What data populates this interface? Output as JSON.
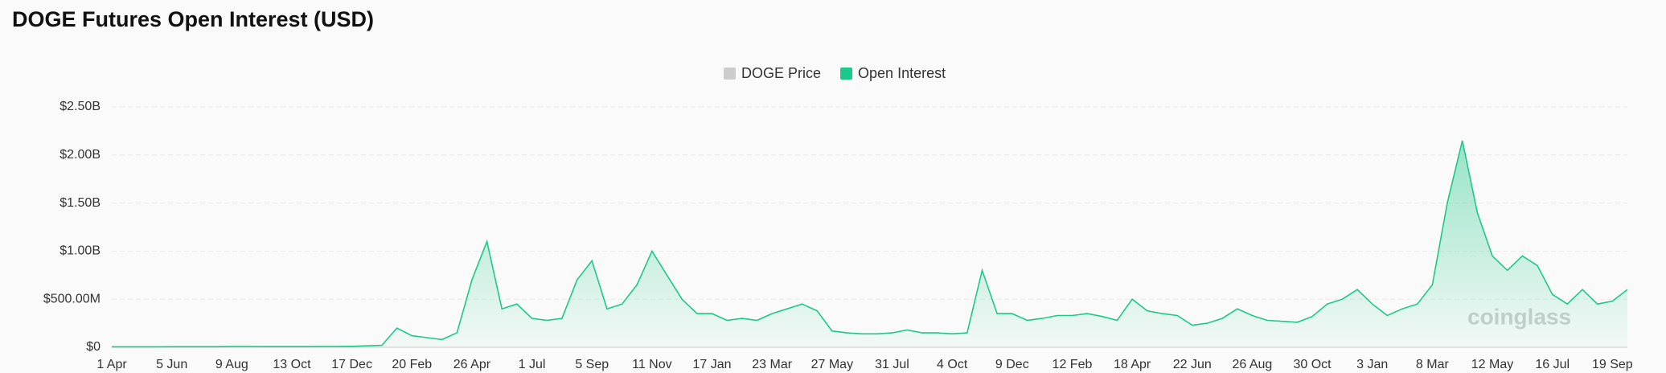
{
  "chart_data": {
    "type": "area",
    "title": "DOGE Futures Open Interest (USD)",
    "categories": [
      "1 Apr",
      null,
      null,
      null,
      "5 Jun",
      null,
      null,
      null,
      "9 Aug",
      null,
      null,
      null,
      "13 Oct",
      null,
      null,
      null,
      "17 Dec",
      null,
      null,
      null,
      "20 Feb",
      null,
      null,
      null,
      "26 Apr",
      null,
      null,
      null,
      "1 Jul",
      null,
      null,
      null,
      "5 Sep",
      null,
      null,
      null,
      "11 Nov",
      null,
      null,
      null,
      "17 Jan",
      null,
      null,
      null,
      "23 Mar",
      null,
      null,
      null,
      "27 May",
      null,
      null,
      null,
      "31 Jul",
      null,
      null,
      null,
      "4 Oct",
      null,
      null,
      null,
      "9 Dec",
      null,
      null,
      null,
      "12 Feb",
      null,
      null,
      null,
      "18 Apr",
      null,
      null,
      null,
      "22 Jun",
      null,
      null,
      null,
      "26 Aug",
      null,
      null,
      null,
      "30 Oct",
      null,
      null,
      null,
      "3 Jan",
      null,
      null,
      null,
      "8 Mar",
      null,
      null,
      null,
      "12 May",
      null,
      null,
      null,
      "16 Jul",
      null,
      null,
      null,
      "19 Sep",
      null
    ],
    "series": [
      {
        "name": "Open Interest",
        "color": "#1ec88a",
        "values": [
          5000000,
          5000000,
          5000000,
          5000000,
          6000000,
          6000000,
          6000000,
          6000000,
          8000000,
          8000000,
          7000000,
          7000000,
          7000000,
          7000000,
          8000000,
          8000000,
          10000000,
          15000000,
          20000000,
          200000000,
          120000000,
          100000000,
          80000000,
          150000000,
          700000000,
          1100000000,
          400000000,
          450000000,
          300000000,
          280000000,
          300000000,
          700000000,
          900000000,
          400000000,
          450000000,
          650000000,
          1000000000,
          750000000,
          500000000,
          350000000,
          350000000,
          280000000,
          300000000,
          280000000,
          350000000,
          400000000,
          450000000,
          380000000,
          170000000,
          150000000,
          140000000,
          140000000,
          150000000,
          180000000,
          150000000,
          150000000,
          140000000,
          150000000,
          800000000,
          350000000,
          350000000,
          280000000,
          300000000,
          330000000,
          330000000,
          350000000,
          320000000,
          280000000,
          500000000,
          380000000,
          350000000,
          330000000,
          230000000,
          250000000,
          300000000,
          400000000,
          330000000,
          280000000,
          270000000,
          260000000,
          320000000,
          450000000,
          500000000,
          600000000,
          450000000,
          330000000,
          400000000,
          450000000,
          650000000,
          1500000000,
          2150000000,
          1400000000,
          950000000,
          800000000,
          950000000,
          850000000,
          550000000,
          450000000,
          600000000,
          450000000,
          480000000,
          600000000
        ]
      }
    ],
    "hidden_series": [
      {
        "name": "DOGE Price",
        "color": "#cccccc"
      }
    ],
    "ylim": [
      0,
      2500000000
    ],
    "yticks": [
      {
        "value": 0,
        "label": "$0"
      },
      {
        "value": 500000000,
        "label": "$500.00M"
      },
      {
        "value": 1000000000,
        "label": "$1.00B"
      },
      {
        "value": 1500000000,
        "label": "$1.50B"
      },
      {
        "value": 2000000000,
        "label": "$2.00B"
      },
      {
        "value": 2500000000,
        "label": "$2.50B"
      }
    ],
    "grid": true,
    "legend": "top",
    "watermark": "coinglass"
  }
}
